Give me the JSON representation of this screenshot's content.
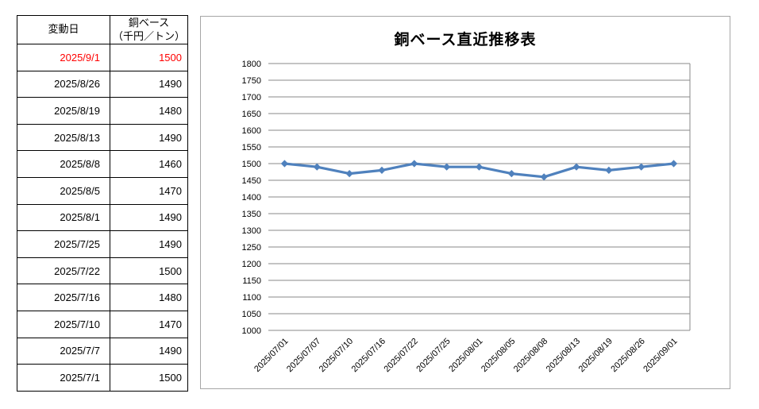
{
  "table": {
    "headers": {
      "date": "変動日",
      "price_line1": "銅ベース",
      "price_line2": "（千円／トン）"
    },
    "highlight_color": "#FF0000",
    "rows": [
      {
        "date": "2025/9/1",
        "value": "1500",
        "highlight": true
      },
      {
        "date": "2025/8/26",
        "value": "1490",
        "highlight": false
      },
      {
        "date": "2025/8/19",
        "value": "1480",
        "highlight": false
      },
      {
        "date": "2025/8/13",
        "value": "1490",
        "highlight": false
      },
      {
        "date": "2025/8/8",
        "value": "1460",
        "highlight": false
      },
      {
        "date": "2025/8/5",
        "value": "1470",
        "highlight": false
      },
      {
        "date": "2025/8/1",
        "value": "1490",
        "highlight": false
      },
      {
        "date": "2025/7/25",
        "value": "1490",
        "highlight": false
      },
      {
        "date": "2025/7/22",
        "value": "1500",
        "highlight": false
      },
      {
        "date": "2025/7/16",
        "value": "1480",
        "highlight": false
      },
      {
        "date": "2025/7/10",
        "value": "1470",
        "highlight": false
      },
      {
        "date": "2025/7/7",
        "value": "1490",
        "highlight": false
      },
      {
        "date": "2025/7/1",
        "value": "1500",
        "highlight": false
      }
    ]
  },
  "chart_data": {
    "type": "line",
    "title": "銅ベース直近推移表",
    "x": [
      "2025/07/01",
      "2025/07/07",
      "2025/07/10",
      "2025/07/16",
      "2025/07/22",
      "2025/07/25",
      "2025/08/01",
      "2025/08/05",
      "2025/08/08",
      "2025/08/13",
      "2025/08/19",
      "2025/08/26",
      "2025/09/01"
    ],
    "values": [
      1500,
      1490,
      1470,
      1480,
      1500,
      1490,
      1490,
      1470,
      1460,
      1490,
      1480,
      1490,
      1500
    ],
    "xlabel": "",
    "ylabel": "",
    "ylim": [
      1000,
      1800
    ],
    "ytick_step": 50,
    "grid": true,
    "legend": "none",
    "marker": "diamond",
    "line_color": "#4F81BD",
    "gridline_color": "#898989",
    "frame_border_color": "#A6A6A6",
    "tick_label_color": "#000000"
  }
}
